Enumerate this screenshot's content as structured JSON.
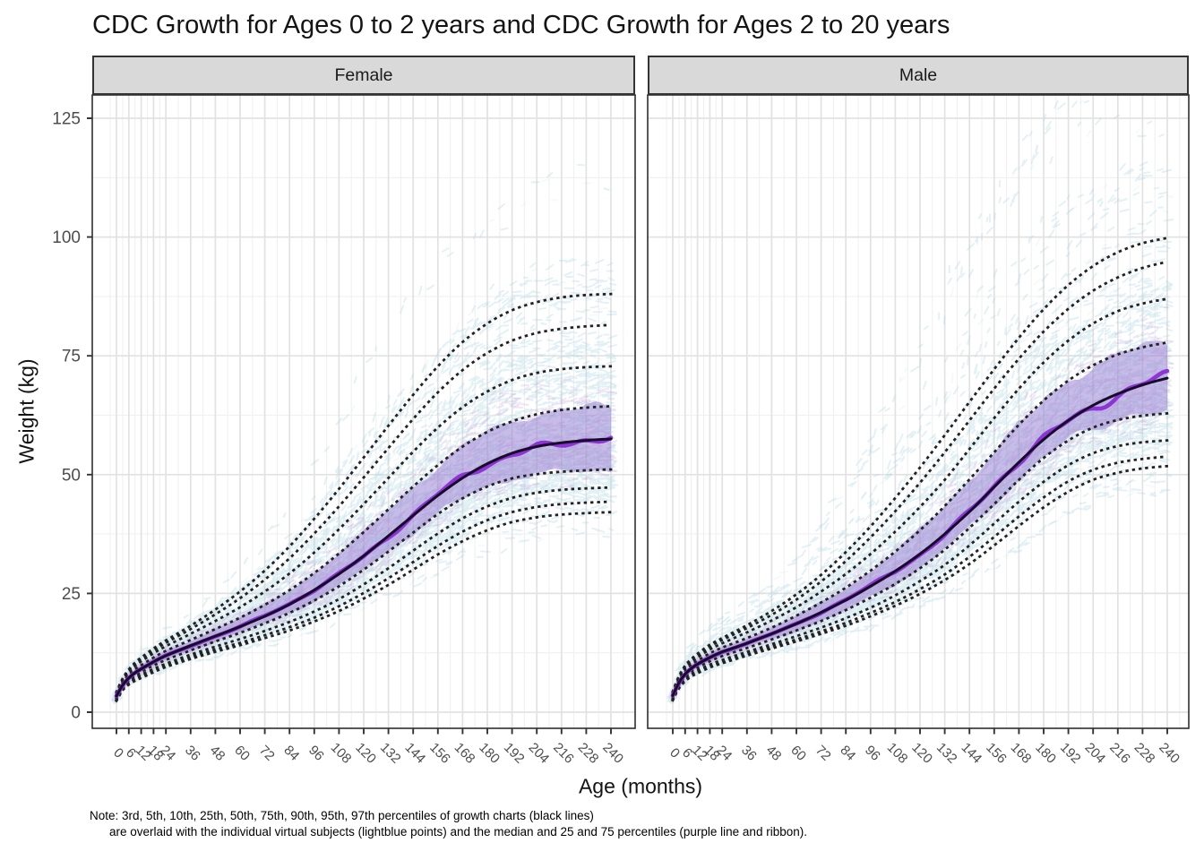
{
  "title": "CDC Growth for Ages 0 to 2 years and CDC Growth for Ages 2 to 20 years",
  "facets": [
    {
      "label": "Female"
    },
    {
      "label": "Male"
    }
  ],
  "axes": {
    "x_title": "Age (months)",
    "y_title": "Weight (kg)",
    "x_ticks": [
      0,
      6,
      12,
      18,
      24,
      36,
      48,
      60,
      72,
      84,
      96,
      108,
      120,
      132,
      144,
      156,
      168,
      180,
      192,
      204,
      216,
      228,
      240
    ],
    "y_ticks": [
      0,
      25,
      50,
      75,
      100,
      125
    ]
  },
  "note_line1": "Note: 3rd, 5th, 10th, 25th, 50th, 75th, 90th, 95th, 97th percentiles of growth charts (black lines)",
  "note_line2": "are overlaid with the individual virtual subjects (lightblue points) and the median and 25 and 75 percentiles (purple line and ribbon).",
  "colors": {
    "lightblue_points": "#a9d6e3",
    "plum_points": "#c08ad0",
    "ribbon_purple": "#8f7ad2",
    "median_purple_line": "#8b2fd4",
    "cdc_median_dark": "#170b2a",
    "dotted_percentiles": "#222222",
    "strip_bg": "#d9d9d9",
    "panel_border": "#2e2e2e",
    "grid_major": "#e2e2e2",
    "grid_minor": "#f0f0f0",
    "tick_text": "#4d4d4d",
    "tick_mark": "#333333"
  },
  "chart_data": {
    "type": "line",
    "title": "CDC Growth for Ages 0 to 2 years and CDC Growth for Ages 2 to 20 years",
    "xlabel": "Age (months)",
    "ylabel": "Weight (kg)",
    "xlim": [
      0,
      240
    ],
    "ylim": [
      0,
      130
    ],
    "grid": true,
    "facet_labels": [
      "Female",
      "Male"
    ],
    "percentile_labels": [
      "p3",
      "p5",
      "p10",
      "p25",
      "p50",
      "p75",
      "p90",
      "p95",
      "p97"
    ],
    "ages": [
      0,
      3,
      6,
      9,
      12,
      18,
      24,
      36,
      48,
      60,
      72,
      84,
      96,
      108,
      120,
      132,
      144,
      156,
      168,
      180,
      192,
      204,
      216,
      228,
      240
    ],
    "series": [
      {
        "name": "Female",
        "percentiles": {
          "p3": [
            2.4,
            4.6,
            5.8,
            6.6,
            7.2,
            8.4,
            9.5,
            11.2,
            12.7,
            14.1,
            15.6,
            17.2,
            19.1,
            21.3,
            23.9,
            26.8,
            30.0,
            33.2,
            36.0,
            38.3,
            40.0,
            41.0,
            41.6,
            41.9,
            42.1
          ],
          "p5": [
            2.5,
            4.8,
            6.0,
            6.9,
            7.5,
            8.7,
            9.8,
            11.6,
            13.2,
            14.6,
            16.2,
            17.9,
            19.9,
            22.3,
            25.1,
            28.2,
            31.6,
            35.0,
            38.0,
            40.4,
            42.1,
            43.2,
            43.8,
            44.1,
            44.3
          ],
          "p10": [
            2.7,
            5.0,
            6.3,
            7.2,
            7.9,
            9.1,
            10.2,
            12.1,
            13.8,
            15.4,
            17.1,
            19.0,
            21.2,
            23.8,
            26.9,
            30.3,
            34.0,
            37.6,
            40.8,
            43.3,
            45.1,
            46.2,
            46.8,
            47.1,
            47.3
          ],
          "p25": [
            3.0,
            5.3,
            6.7,
            7.7,
            8.5,
            9.8,
            11.0,
            13.0,
            14.9,
            16.7,
            18.7,
            20.9,
            23.5,
            26.5,
            30.0,
            33.8,
            37.8,
            41.7,
            45.0,
            47.5,
            49.2,
            50.1,
            50.6,
            50.9,
            51.1
          ],
          "p50": [
            3.4,
            5.7,
            7.2,
            8.3,
            9.1,
            10.6,
            11.9,
            14.0,
            16.0,
            18.0,
            20.2,
            22.7,
            25.7,
            29.1,
            32.9,
            37.1,
            41.4,
            45.6,
            49.3,
            52.3,
            54.5,
            55.9,
            56.7,
            57.2,
            57.5
          ],
          "p75": [
            3.7,
            6.2,
            7.8,
            9.0,
            9.9,
            11.5,
            12.9,
            15.2,
            17.5,
            19.9,
            22.6,
            25.7,
            29.3,
            33.4,
            37.9,
            42.7,
            47.5,
            52.0,
            55.9,
            59.0,
            61.2,
            62.7,
            63.6,
            64.1,
            64.4
          ],
          "p90": [
            4.0,
            6.6,
            8.4,
            9.7,
            10.7,
            12.4,
            13.9,
            16.5,
            19.2,
            22.1,
            25.4,
            29.2,
            33.6,
            38.5,
            43.8,
            49.3,
            54.8,
            59.9,
            64.2,
            67.5,
            69.9,
            71.4,
            72.2,
            72.6,
            72.8
          ],
          "p95": [
            4.2,
            6.9,
            8.8,
            10.1,
            11.2,
            13.0,
            14.6,
            17.5,
            20.6,
            24.0,
            27.9,
            32.4,
            37.6,
            43.3,
            49.4,
            55.6,
            61.7,
            67.3,
            72.0,
            75.6,
            78.2,
            79.8,
            80.7,
            81.2,
            81.5
          ],
          "p97": [
            4.3,
            7.1,
            9.0,
            10.4,
            11.5,
            13.4,
            15.1,
            18.2,
            21.6,
            25.4,
            29.8,
            34.9,
            40.7,
            47.0,
            53.6,
            60.3,
            66.8,
            72.8,
            77.9,
            81.8,
            84.6,
            86.3,
            87.3,
            87.8,
            88.0
          ]
        }
      },
      {
        "name": "Male",
        "percentiles": {
          "p3": [
            2.5,
            5.0,
            6.5,
            7.5,
            8.2,
            9.4,
            10.3,
            11.9,
            13.4,
            14.9,
            16.5,
            18.2,
            20.2,
            22.4,
            24.9,
            27.8,
            31.2,
            35.1,
            39.2,
            43.1,
            46.4,
            48.9,
            50.4,
            51.3,
            51.8
          ],
          "p5": [
            2.6,
            5.2,
            6.7,
            7.7,
            8.4,
            9.7,
            10.6,
            12.3,
            13.8,
            15.3,
            17.0,
            18.8,
            20.9,
            23.2,
            25.9,
            29.0,
            32.7,
            36.9,
            41.2,
            45.2,
            48.6,
            51.0,
            52.5,
            53.3,
            53.8
          ],
          "p10": [
            2.8,
            5.5,
            7.0,
            8.0,
            8.8,
            10.0,
            11.0,
            12.7,
            14.3,
            16.0,
            17.8,
            19.8,
            22.0,
            24.6,
            27.6,
            31.0,
            35.1,
            39.7,
            44.3,
            48.5,
            52.0,
            54.5,
            56.0,
            56.8,
            57.2
          ],
          "p25": [
            3.1,
            5.8,
            7.4,
            8.6,
            9.4,
            10.7,
            11.8,
            13.5,
            15.3,
            17.2,
            19.2,
            21.5,
            24.1,
            27.0,
            30.3,
            34.2,
            38.8,
            43.8,
            48.9,
            53.5,
            57.2,
            59.9,
            61.5,
            62.4,
            62.9
          ],
          "p50": [
            3.5,
            6.2,
            8.0,
            9.2,
            10.1,
            11.5,
            12.7,
            14.5,
            16.5,
            18.6,
            21.0,
            23.6,
            26.5,
            29.7,
            33.3,
            37.5,
            42.2,
            47.4,
            52.6,
            57.4,
            61.4,
            64.6,
            67.0,
            68.9,
            70.3
          ],
          "p75": [
            3.8,
            6.7,
            8.6,
            9.9,
            10.8,
            12.4,
            13.6,
            15.6,
            17.8,
            20.3,
            23.1,
            26.2,
            29.8,
            33.8,
            38.3,
            43.4,
            49.0,
            54.7,
            60.5,
            65.6,
            69.8,
            73.0,
            75.3,
            76.8,
            77.8
          ],
          "p90": [
            4.1,
            7.1,
            9.2,
            10.5,
            11.5,
            13.2,
            14.5,
            16.8,
            19.3,
            22.1,
            25.4,
            29.1,
            33.3,
            38.0,
            43.2,
            48.9,
            55.4,
            61.9,
            68.1,
            73.6,
            78.2,
            81.8,
            84.4,
            86.0,
            87.0
          ],
          "p95": [
            4.3,
            7.4,
            9.6,
            11.0,
            12.0,
            13.8,
            15.2,
            17.7,
            20.5,
            23.7,
            27.5,
            31.8,
            36.8,
            42.3,
            48.3,
            54.7,
            61.4,
            68.1,
            74.4,
            80.1,
            84.9,
            88.7,
            91.5,
            93.5,
            94.8
          ],
          "p97": [
            4.4,
            7.6,
            9.8,
            11.2,
            12.3,
            14.2,
            15.6,
            18.3,
            21.3,
            24.8,
            28.9,
            33.7,
            39.1,
            45.1,
            51.5,
            58.3,
            65.3,
            72.2,
            78.8,
            84.8,
            89.9,
            93.9,
            96.8,
            98.7,
            99.8
          ]
        }
      }
    ]
  }
}
